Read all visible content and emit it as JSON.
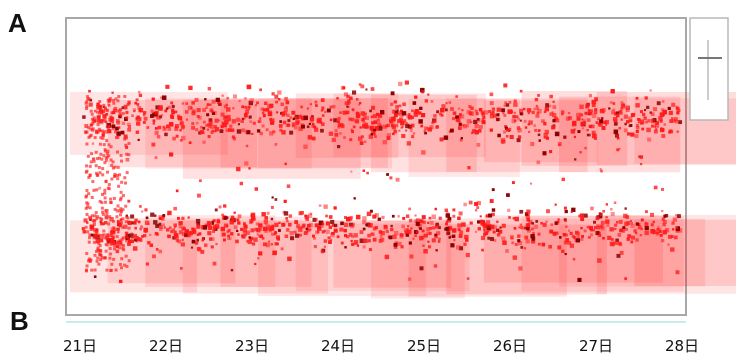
{
  "panels": {
    "top": "A",
    "bottom": "B"
  },
  "colors": {
    "points": "#ff1a1a",
    "dark_points": "#8b0000",
    "frame": "#a8a8a8"
  },
  "chart_data": {
    "type": "scatter",
    "title": "",
    "xlabel": "",
    "ylabel": "",
    "x_unit": "day",
    "categories": [
      "21日",
      "22日",
      "23日",
      "24日",
      "25日",
      "26日",
      "27日",
      "28日"
    ],
    "xlim": [
      21,
      28
    ],
    "grid": false,
    "legend": {
      "position": "top-right",
      "entries": []
    },
    "bands": [
      {
        "name": "",
        "center_frac": 0.38,
        "density": "high"
      },
      {
        "name": "",
        "center_frac": 0.77,
        "density": "high"
      }
    ]
  }
}
